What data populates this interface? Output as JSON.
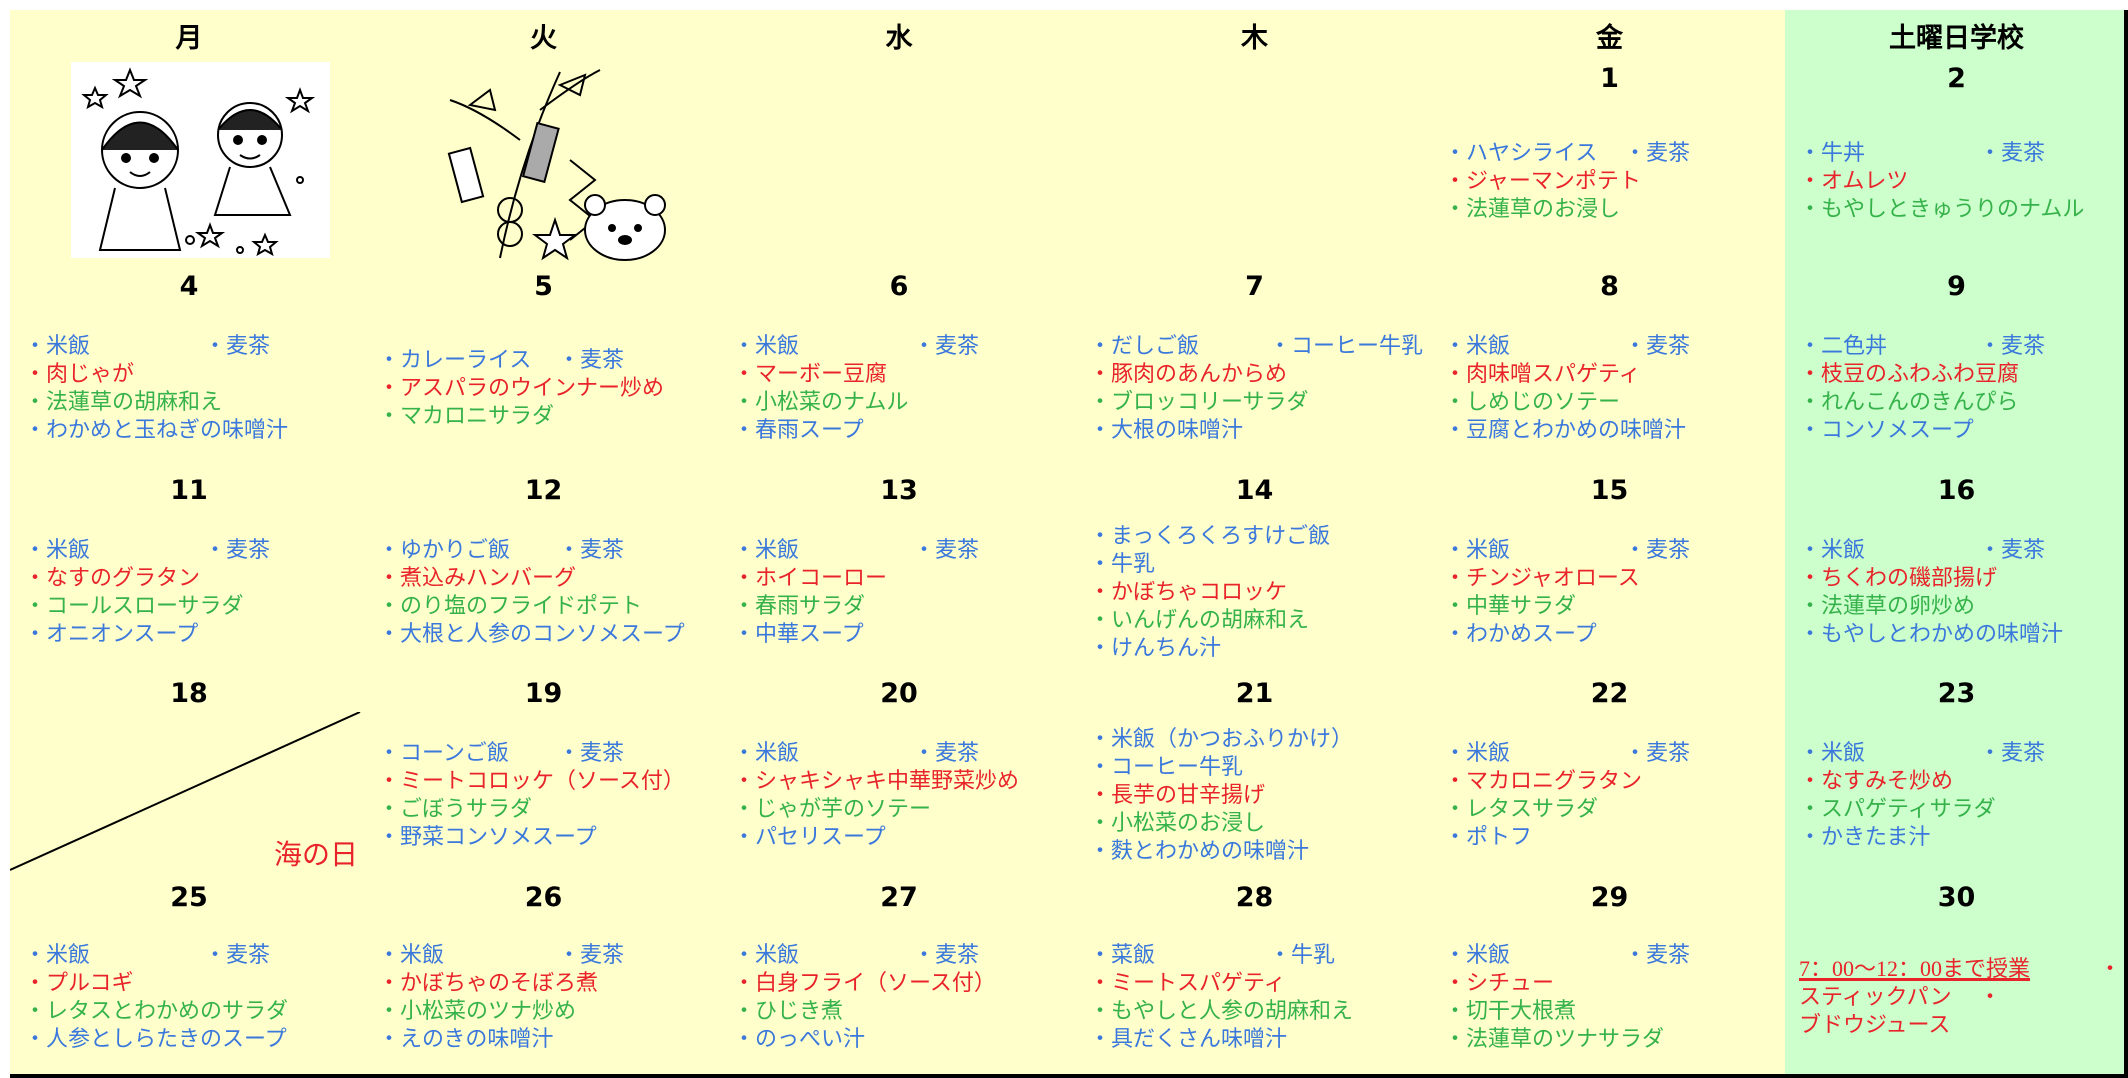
{
  "colors": {
    "blue": "#3b78dc",
    "red": "#e8242a",
    "green": "#35b24a",
    "weekday_bg": "#ffffcc",
    "saturday_bg": "#ccffcc"
  },
  "header": {
    "days": [
      "月",
      "火",
      "水",
      "木",
      "金",
      "土曜日学校"
    ]
  },
  "weeks": [
    {
      "cells": [
        {
          "date": null,
          "lines": []
        },
        {
          "date": null,
          "lines": []
        },
        {
          "date": null,
          "lines": []
        },
        {
          "date": null,
          "lines": []
        },
        {
          "date": 1,
          "lines": [
            [
              {
                "text": "・ハヤシライス",
                "color": "blue"
              },
              {
                "text": "・麦茶",
                "color": "blue"
              }
            ],
            [
              {
                "text": "・ジャーマンポテト",
                "color": "red"
              }
            ],
            [
              {
                "text": "・法蓮草のお浸し",
                "color": "green"
              }
            ]
          ]
        },
        {
          "date": 2,
          "lines": [
            [
              {
                "text": "・牛丼",
                "color": "blue"
              },
              {
                "text": "・麦茶",
                "color": "blue"
              }
            ],
            [
              {
                "text": "・オムレツ",
                "color": "red"
              }
            ],
            [
              {
                "text": "・もやしときゅうりのナムル",
                "color": "green"
              }
            ]
          ]
        }
      ]
    },
    {
      "cells": [
        {
          "date": 4,
          "lines": [
            [
              {
                "text": "・米飯",
                "color": "blue"
              },
              {
                "text": "・麦茶",
                "color": "blue"
              }
            ],
            [
              {
                "text": "・肉じゃが",
                "color": "red"
              }
            ],
            [
              {
                "text": "・法蓮草の胡麻和え",
                "color": "green"
              }
            ],
            [
              {
                "text": "・わかめと玉ねぎの味噌汁",
                "color": "blue"
              }
            ]
          ]
        },
        {
          "date": 5,
          "lines": [
            [
              {
                "text": "・カレーライス",
                "color": "blue"
              },
              {
                "text": "・麦茶",
                "color": "blue"
              }
            ],
            [
              {
                "text": "・アスパラのウインナー炒め",
                "color": "red"
              }
            ],
            [
              {
                "text": "・マカロニサラダ",
                "color": "green"
              }
            ]
          ]
        },
        {
          "date": 6,
          "lines": [
            [
              {
                "text": "・米飯",
                "color": "blue"
              },
              {
                "text": "・麦茶",
                "color": "blue"
              }
            ],
            [
              {
                "text": "・マーボー豆腐",
                "color": "red"
              }
            ],
            [
              {
                "text": "・小松菜のナムル",
                "color": "green"
              }
            ],
            [
              {
                "text": "・春雨スープ",
                "color": "blue"
              }
            ]
          ]
        },
        {
          "date": 7,
          "lines": [
            [
              {
                "text": "・だしご飯",
                "color": "blue"
              },
              {
                "text": "・コーヒー牛乳",
                "color": "blue"
              }
            ],
            [
              {
                "text": "・豚肉のあんからめ",
                "color": "red"
              }
            ],
            [
              {
                "text": "・ブロッコリーサラダ",
                "color": "green"
              }
            ],
            [
              {
                "text": "・大根の味噌汁",
                "color": "blue"
              }
            ]
          ]
        },
        {
          "date": 8,
          "lines": [
            [
              {
                "text": "・米飯",
                "color": "blue"
              },
              {
                "text": "・麦茶",
                "color": "blue"
              }
            ],
            [
              {
                "text": "・肉味噌スパゲティ",
                "color": "red"
              }
            ],
            [
              {
                "text": "・しめじのソテー",
                "color": "green"
              }
            ],
            [
              {
                "text": "・豆腐とわかめの味噌汁",
                "color": "blue"
              }
            ]
          ]
        },
        {
          "date": 9,
          "lines": [
            [
              {
                "text": "・二色丼",
                "color": "blue"
              },
              {
                "text": "・麦茶",
                "color": "blue"
              }
            ],
            [
              {
                "text": "・枝豆のふわふわ豆腐",
                "color": "red"
              }
            ],
            [
              {
                "text": "・れんこんのきんぴら",
                "color": "green"
              }
            ],
            [
              {
                "text": "・コンソメスープ",
                "color": "blue"
              }
            ]
          ]
        }
      ]
    },
    {
      "cells": [
        {
          "date": 11,
          "lines": [
            [
              {
                "text": "・米飯",
                "color": "blue"
              },
              {
                "text": "・麦茶",
                "color": "blue"
              }
            ],
            [
              {
                "text": "・なすのグラタン",
                "color": "red"
              }
            ],
            [
              {
                "text": "・コールスローサラダ",
                "color": "green"
              }
            ],
            [
              {
                "text": "・オニオンスープ",
                "color": "blue"
              }
            ]
          ]
        },
        {
          "date": 12,
          "lines": [
            [
              {
                "text": "・ゆかりご飯",
                "color": "blue"
              },
              {
                "text": "・麦茶",
                "color": "blue"
              }
            ],
            [
              {
                "text": "・煮込みハンバーグ",
                "color": "red"
              }
            ],
            [
              {
                "text": "・のり塩のフライドポテト",
                "color": "green"
              }
            ],
            [
              {
                "text": "・大根と人参のコンソメスープ",
                "color": "blue"
              }
            ]
          ]
        },
        {
          "date": 13,
          "lines": [
            [
              {
                "text": "・米飯",
                "color": "blue"
              },
              {
                "text": "・麦茶",
                "color": "blue"
              }
            ],
            [
              {
                "text": "・ホイコーロー",
                "color": "red"
              }
            ],
            [
              {
                "text": "・春雨サラダ",
                "color": "green"
              }
            ],
            [
              {
                "text": "・中華スープ",
                "color": "blue"
              }
            ]
          ]
        },
        {
          "date": 14,
          "lines": [
            [
              {
                "text": "・まっくろくろすけご飯",
                "color": "blue"
              }
            ],
            [
              {
                "text": "・牛乳",
                "color": "blue"
              }
            ],
            [
              {
                "text": "・かぼちゃコロッケ",
                "color": "red"
              }
            ],
            [
              {
                "text": "・いんげんの胡麻和え",
                "color": "green"
              }
            ],
            [
              {
                "text": "・けんちん汁",
                "color": "blue"
              }
            ]
          ]
        },
        {
          "date": 15,
          "lines": [
            [
              {
                "text": "・米飯",
                "color": "blue"
              },
              {
                "text": "・麦茶",
                "color": "blue"
              }
            ],
            [
              {
                "text": "・チンジャオロース",
                "color": "red"
              }
            ],
            [
              {
                "text": "・中華サラダ",
                "color": "green"
              }
            ],
            [
              {
                "text": "・わかめスープ",
                "color": "blue"
              }
            ]
          ]
        },
        {
          "date": 16,
          "lines": [
            [
              {
                "text": "・米飯",
                "color": "blue"
              },
              {
                "text": "・麦茶",
                "color": "blue"
              }
            ],
            [
              {
                "text": "・ちくわの磯部揚げ",
                "color": "red"
              }
            ],
            [
              {
                "text": "・法蓮草の卵炒め",
                "color": "green"
              }
            ],
            [
              {
                "text": "・もやしとわかめの味噌汁",
                "color": "blue"
              }
            ]
          ]
        }
      ]
    },
    {
      "cells": [
        {
          "date": 18,
          "lines": [],
          "note": "海の日",
          "note_color": "red"
        },
        {
          "date": 19,
          "lines": [
            [
              {
                "text": "・コーンご飯",
                "color": "blue"
              },
              {
                "text": "・麦茶",
                "color": "blue"
              }
            ],
            [
              {
                "text": "・ミートコロッケ（ソース付）",
                "color": "red"
              }
            ],
            [
              {
                "text": "・ごぼうサラダ",
                "color": "green"
              }
            ],
            [
              {
                "text": "・野菜コンソメスープ",
                "color": "blue"
              }
            ]
          ]
        },
        {
          "date": 20,
          "lines": [
            [
              {
                "text": "・米飯",
                "color": "blue"
              },
              {
                "text": "・麦茶",
                "color": "blue"
              }
            ],
            [
              {
                "text": "・シャキシャキ中華野菜炒め",
                "color": "red"
              }
            ],
            [
              {
                "text": "・じゃが芋のソテー",
                "color": "green"
              }
            ],
            [
              {
                "text": "・パセリスープ",
                "color": "blue"
              }
            ]
          ]
        },
        {
          "date": 21,
          "lines": [
            [
              {
                "text": "・米飯（かつおふりかけ）",
                "color": "blue"
              }
            ],
            [
              {
                "text": "・コーヒー牛乳",
                "color": "blue"
              }
            ],
            [
              {
                "text": "・長芋の甘辛揚げ",
                "color": "red"
              }
            ],
            [
              {
                "text": "・小松菜のお浸し",
                "color": "green"
              }
            ],
            [
              {
                "text": "・麩とわかめの味噌汁",
                "color": "blue"
              }
            ]
          ]
        },
        {
          "date": 22,
          "lines": [
            [
              {
                "text": "・米飯",
                "color": "blue"
              },
              {
                "text": "・麦茶",
                "color": "blue"
              }
            ],
            [
              {
                "text": "・マカロニグラタン",
                "color": "red"
              }
            ],
            [
              {
                "text": "・レタスサラダ",
                "color": "green"
              }
            ],
            [
              {
                "text": "・ポトフ",
                "color": "blue"
              }
            ]
          ]
        },
        {
          "date": 23,
          "lines": [
            [
              {
                "text": "・米飯",
                "color": "blue"
              },
              {
                "text": "・麦茶",
                "color": "blue"
              }
            ],
            [
              {
                "text": "・なすみそ炒め",
                "color": "red"
              }
            ],
            [
              {
                "text": "・スパゲティサラダ",
                "color": "green"
              }
            ],
            [
              {
                "text": "・かきたま汁",
                "color": "blue"
              }
            ]
          ]
        }
      ]
    },
    {
      "cells": [
        {
          "date": 25,
          "lines": [
            [
              {
                "text": "・米飯",
                "color": "blue"
              },
              {
                "text": "・麦茶",
                "color": "blue"
              }
            ],
            [
              {
                "text": "・プルコギ",
                "color": "red"
              }
            ],
            [
              {
                "text": "・レタスとわかめのサラダ",
                "color": "green"
              }
            ],
            [
              {
                "text": "・人参としらたきのスープ",
                "color": "blue"
              }
            ]
          ]
        },
        {
          "date": 26,
          "lines": [
            [
              {
                "text": "・米飯",
                "color": "blue"
              },
              {
                "text": "・麦茶",
                "color": "blue"
              }
            ],
            [
              {
                "text": "・かぼちゃのそぼろ煮",
                "color": "red"
              }
            ],
            [
              {
                "text": "・小松菜のツナ炒め",
                "color": "green"
              }
            ],
            [
              {
                "text": "・えのきの味噌汁",
                "color": "blue"
              }
            ]
          ]
        },
        {
          "date": 27,
          "lines": [
            [
              {
                "text": "・米飯",
                "color": "blue"
              },
              {
                "text": "・麦茶",
                "color": "blue"
              }
            ],
            [
              {
                "text": "・白身フライ（ソース付）",
                "color": "red"
              }
            ],
            [
              {
                "text": "・ひじき煮",
                "color": "green"
              }
            ],
            [
              {
                "text": "・のっぺい汁",
                "color": "blue"
              }
            ]
          ]
        },
        {
          "date": 28,
          "lines": [
            [
              {
                "text": "・菜飯",
                "color": "blue"
              },
              {
                "text": "・牛乳",
                "color": "blue"
              }
            ],
            [
              {
                "text": "・ミートスパゲティ",
                "color": "red"
              }
            ],
            [
              {
                "text": "・もやしと人参の胡麻和え",
                "color": "green"
              }
            ],
            [
              {
                "text": "・具だくさん味噌汁",
                "color": "blue"
              }
            ]
          ]
        },
        {
          "date": 29,
          "lines": [
            [
              {
                "text": "・米飯",
                "color": "blue"
              },
              {
                "text": "・麦茶",
                "color": "blue"
              }
            ],
            [
              {
                "text": "・シチュー",
                "color": "red"
              }
            ],
            [
              {
                "text": "・切干大根煮",
                "color": "green"
              }
            ],
            [
              {
                "text": "・法蓮草のツナサラダ",
                "color": "green"
              }
            ]
          ]
        },
        {
          "date": 30,
          "lines": [
            [
              {
                "text": "7：00～12：00まで授業",
                "color": "red",
                "underline": true
              },
              {
                "text": "・",
                "color": "red"
              }
            ],
            [
              {
                "text": "スティックパン",
                "color": "red"
              },
              {
                "text": "・",
                "color": "red"
              }
            ],
            [
              {
                "text": "ブドウジュース",
                "color": "red"
              }
            ]
          ]
        }
      ]
    }
  ]
}
